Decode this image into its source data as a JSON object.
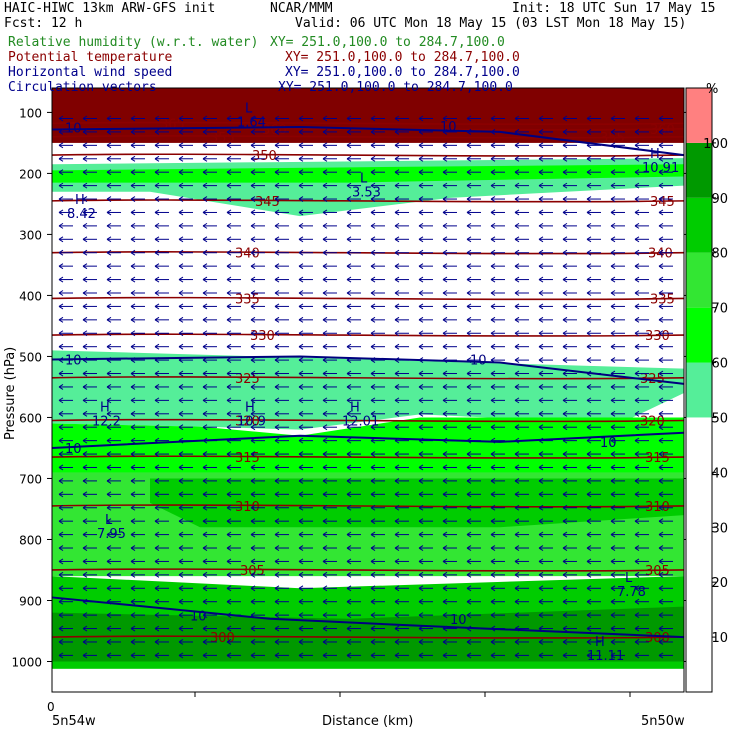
{
  "header": {
    "left1": "HAIC-HIWC 13km ARW-GFS init",
    "left2": "Fcst:    12 h",
    "center": "NCAR/MMM",
    "init": "Init: 18 UTC Sun 17 May 15",
    "valid": "Valid: 06 UTC Mon 18 May 15 (03 LST Mon 18 May 15)"
  },
  "fields": [
    {
      "name": "Relative humidity (w.r.t. water)",
      "xy": "XY= 251.0,100.0 to 284.7,100.0",
      "color": "#228b22"
    },
    {
      "name": "Potential temperature",
      "xy": "XY= 251.0,100.0 to 284.7,100.0",
      "color": "#8b0000"
    },
    {
      "name": "Horizontal wind speed",
      "xy": "XY= 251.0,100.0 to 284.7,100.0",
      "color": "#00008b"
    },
    {
      "name": "Circulation vectors",
      "xy": "XY= 251.0,100.0 to 284.7,100.0",
      "color": "#00008b"
    }
  ],
  "chart_data": {
    "type": "heatmap",
    "title": "",
    "ylabel": "Pressure (hPa)",
    "xlabel": "Distance (km)",
    "y_ticks": [
      100,
      200,
      300,
      400,
      500,
      600,
      700,
      800,
      900,
      1000
    ],
    "y_range": [
      60,
      1050
    ],
    "x_tick_label": "0",
    "x_left_label": "5n54w",
    "x_right_label": "5n50w",
    "colorbar": {
      "unit": "%",
      "levels": [
        10,
        20,
        30,
        40,
        50,
        60,
        70,
        80,
        90,
        100
      ],
      "colors": [
        "#00cc00",
        "#00e600",
        "#00ff00",
        "#33ff33",
        "#2bd82b",
        "#1cb91c",
        "#0e9a0e",
        "#008000",
        "#ff8080",
        "#ffffff",
        "#55ee99"
      ],
      "bands": [
        {
          "from": 50,
          "to": 60,
          "color": "#55ee99"
        },
        {
          "from": 60,
          "to": 70,
          "color": "#00ff00"
        },
        {
          "from": 70,
          "to": 80,
          "color": "#33e633"
        },
        {
          "from": 80,
          "to": 90,
          "color": "#00cc00"
        },
        {
          "from": 90,
          "to": 100,
          "color": "#009900"
        },
        {
          "from": 100,
          "to": 110,
          "color": "#ff8080"
        }
      ],
      "stratosphere_color": "#800000"
    },
    "theta_contours": [
      {
        "value": 300,
        "p": 960,
        "labels": [
          [
            210,
            "300"
          ],
          [
            645,
            "300"
          ]
        ]
      },
      {
        "value": 305,
        "p": 850,
        "labels": [
          [
            240,
            "305"
          ],
          [
            645,
            "305"
          ]
        ]
      },
      {
        "value": 310,
        "p": 745,
        "labels": [
          [
            235,
            "310"
          ],
          [
            645,
            "310"
          ]
        ]
      },
      {
        "value": 315,
        "p": 665,
        "labels": [
          [
            235,
            "315"
          ],
          [
            645,
            "315"
          ]
        ]
      },
      {
        "value": 320,
        "p": 605,
        "labels": [
          [
            235,
            "320"
          ],
          [
            640,
            "320"
          ]
        ]
      },
      {
        "value": 325,
        "p": 535,
        "labels": [
          [
            235,
            "325"
          ],
          [
            640,
            "325"
          ]
        ]
      },
      {
        "value": 330,
        "p": 465,
        "labels": [
          [
            250,
            "330"
          ],
          [
            645,
            "330"
          ]
        ]
      },
      {
        "value": 335,
        "p": 405,
        "labels": [
          [
            235,
            "335"
          ],
          [
            650,
            "335"
          ]
        ]
      },
      {
        "value": 340,
        "p": 330,
        "labels": [
          [
            235,
            "340"
          ],
          [
            648,
            "340"
          ]
        ]
      },
      {
        "value": 345,
        "p": 245,
        "labels": [
          [
            255,
            "345"
          ],
          [
            650,
            "345"
          ]
        ]
      },
      {
        "value": 350,
        "p": 170,
        "labels": [
          [
            252,
            "350"
          ]
        ]
      },
      {
        "value": 355,
        "p": 140,
        "labels": [
          [
            210,
            "355"
          ],
          [
            600,
            "355"
          ]
        ]
      },
      {
        "value": 360,
        "p": 127,
        "labels": [
          [
            262,
            "360"
          ],
          [
            650,
            "360"
          ]
        ]
      },
      {
        "value": 365,
        "p": 118,
        "labels": [
          [
            160,
            "365"
          ]
        ]
      }
    ],
    "wind_contours": [
      {
        "value": 10,
        "labels": [
          [
            70,
            "10"
          ],
          [
            475,
            "10"
          ],
          [
            70,
            "10"
          ],
          [
            605,
            "10"
          ],
          [
            200,
            "10"
          ],
          [
            460,
            "10"
          ],
          [
            70,
            "10"
          ],
          [
            450,
            "10"
          ]
        ]
      }
    ],
    "extrema": [
      {
        "kind": "H",
        "value": "8.42",
        "x": 75,
        "p": 250
      },
      {
        "kind": "L",
        "value": "3.53",
        "x": 360,
        "p": 215
      },
      {
        "kind": "H",
        "value": "12.2",
        "x": 100,
        "p": 590
      },
      {
        "kind": "H",
        "value": "10.9",
        "x": 245,
        "p": 590
      },
      {
        "kind": "H",
        "value": "12.01",
        "x": 350,
        "p": 590
      },
      {
        "kind": "L",
        "value": "7.95",
        "x": 105,
        "p": 775
      },
      {
        "kind": "L",
        "value": "7.78",
        "x": 625,
        "p": 870
      },
      {
        "kind": "H",
        "value": "11.11",
        "x": 595,
        "p": 975
      },
      {
        "kind": "H",
        "value": "10.91",
        "x": 650,
        "p": 175
      },
      {
        "kind": "L",
        "value": "1.64",
        "x": 245,
        "p": 100
      }
    ]
  }
}
